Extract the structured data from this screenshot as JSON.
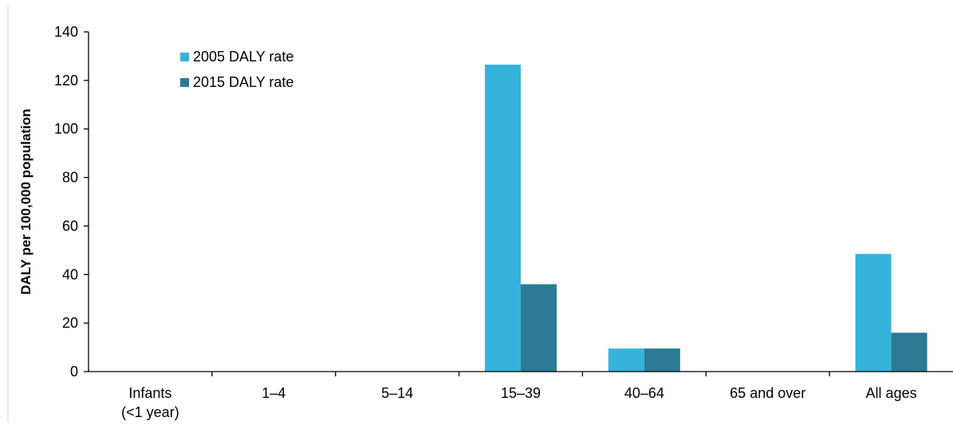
{
  "chart_data": {
    "type": "bar",
    "title": "",
    "xlabel": "",
    "ylabel": "DALY per 100,000 population",
    "ylim": [
      0,
      140
    ],
    "yticks": [
      0,
      20,
      40,
      60,
      80,
      100,
      120,
      140
    ],
    "grid": false,
    "legend_position": "top-left",
    "categories": [
      [
        "Infants",
        "(<1 year)"
      ],
      [
        "1–4"
      ],
      [
        "5–14"
      ],
      [
        "15–39"
      ],
      [
        "40–64"
      ],
      [
        "65 and over"
      ],
      [
        "All ages"
      ]
    ],
    "series": [
      {
        "name": "2005 DALY rate",
        "color": "#35B3DC",
        "values": [
          0,
          0,
          0,
          126.5,
          9.5,
          0,
          48.5
        ]
      },
      {
        "name": "2015 DALY rate",
        "color": "#2A7B93",
        "values": [
          0,
          0,
          0,
          36,
          9.5,
          0,
          16
        ]
      }
    ]
  }
}
